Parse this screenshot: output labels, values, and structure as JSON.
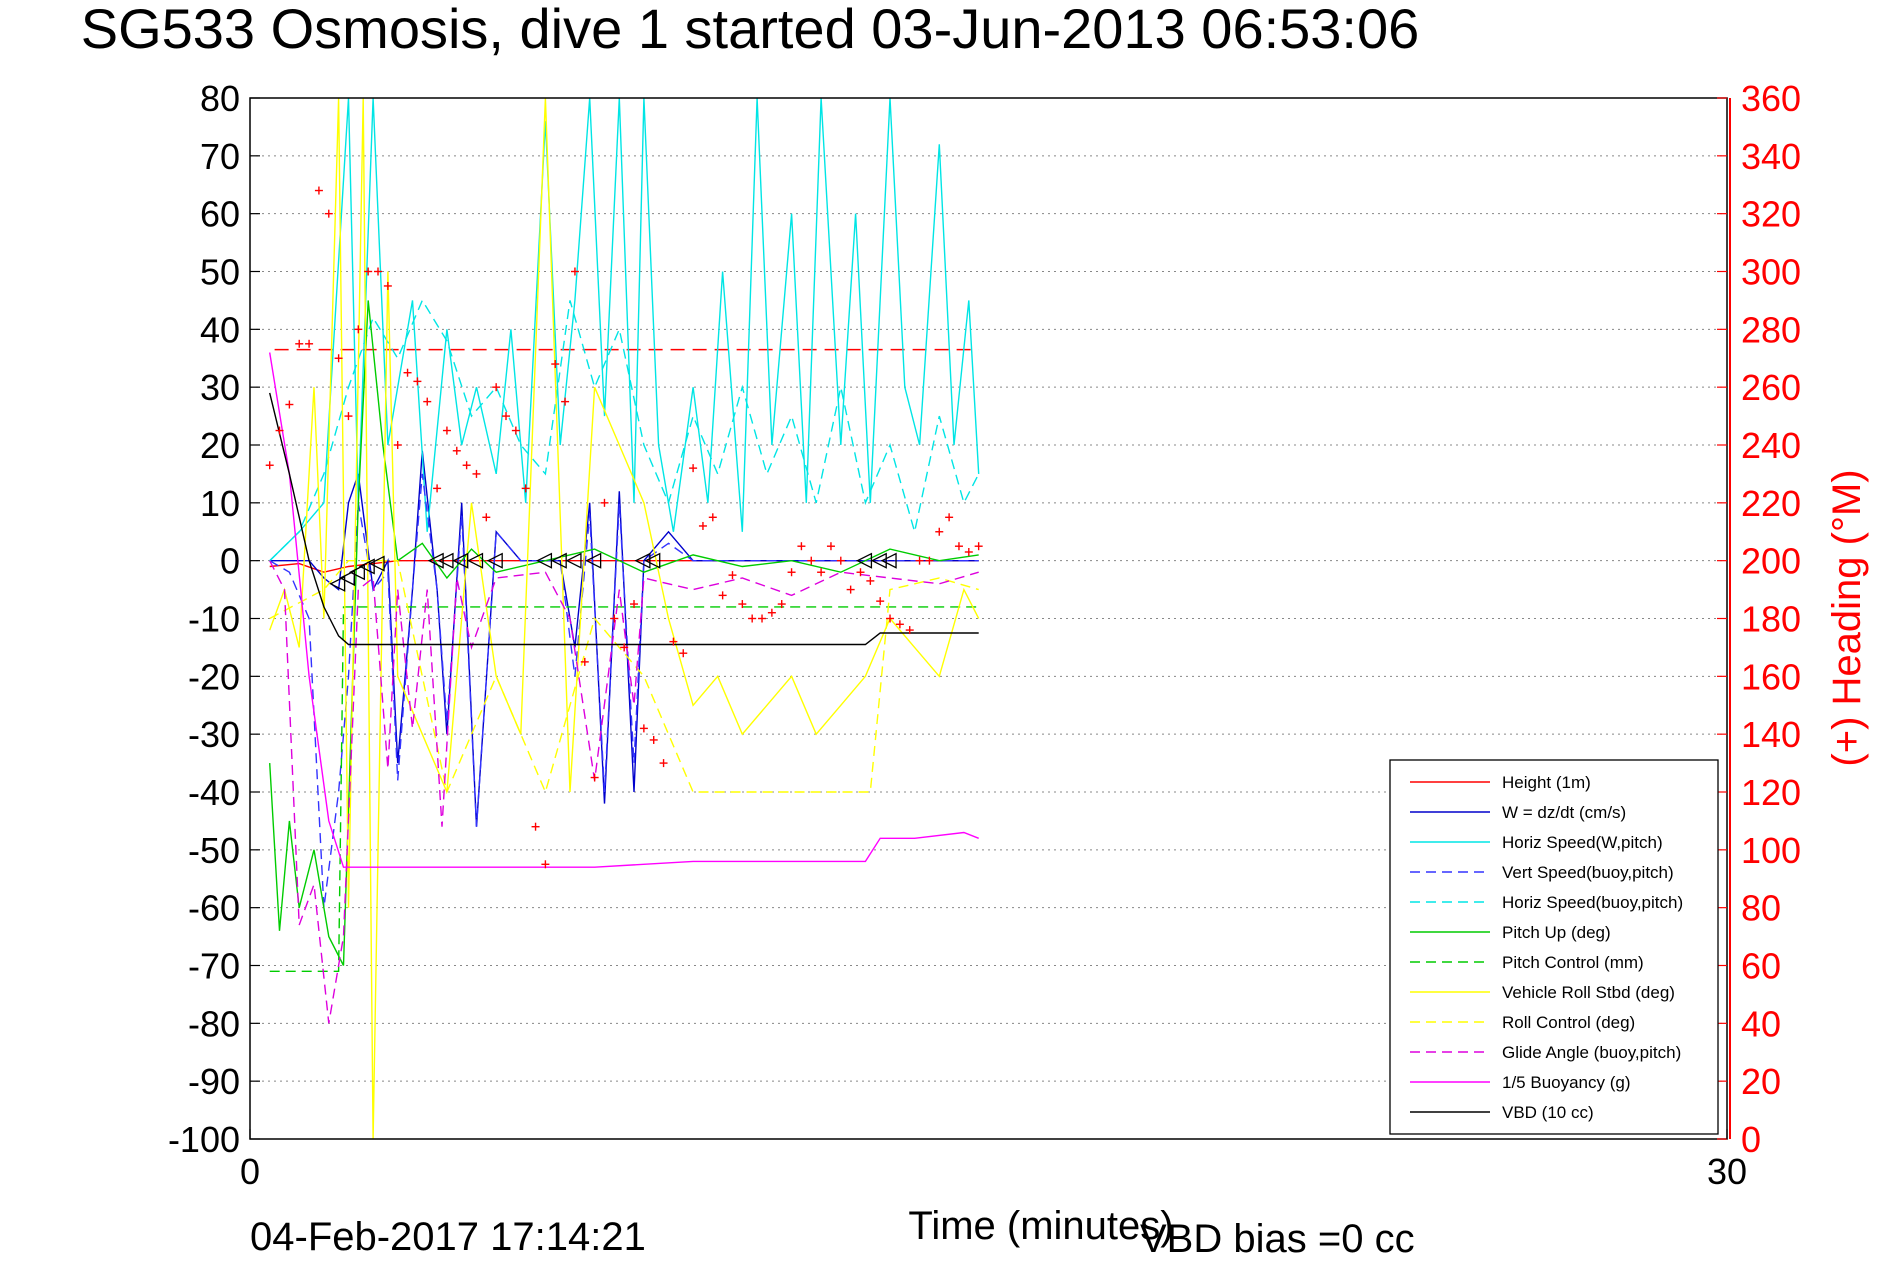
{
  "chart_data": {
    "type": "line",
    "title": "SG533 Osmosis, dive 1 started 03-Jun-2013 06:53:06",
    "xlabel": "Time (minutes)",
    "ylabel_right": "(+) Heading (°M)",
    "xlim": [
      0,
      30
    ],
    "ylim": [
      -100,
      80
    ],
    "ylim_right": [
      0,
      360
    ],
    "x_ticks": [
      0,
      30
    ],
    "y_ticks": [
      80,
      70,
      60,
      50,
      40,
      30,
      20,
      10,
      0,
      -10,
      -20,
      -30,
      -40,
      -50,
      -60,
      -70,
      -80,
      -90,
      -100
    ],
    "y_ticks_right": [
      360,
      340,
      320,
      300,
      280,
      260,
      240,
      220,
      200,
      180,
      160,
      140,
      120,
      100,
      80,
      60,
      40,
      20,
      0
    ],
    "grid": true,
    "legend_position": "bottom-right",
    "footer_timestamp": "04-Feb-2017 17:14:21",
    "footer_note": "VBD bias =0 cc",
    "colors": {
      "right_axis": "#ff0000",
      "height": "#ff0000",
      "w": "#0000cc",
      "horiz_w_pitch": "#00e5e5",
      "vert_buoy": "#3333ff",
      "horiz_buoy": "#00e5e5",
      "pitch_up": "#00cc00",
      "pitch_control": "#00cc00",
      "roll": "#ffff00",
      "roll_control": "#ffff00",
      "glide_angle": "#dd00dd",
      "buoyancy": "#ff00ff",
      "vbd": "#000000"
    },
    "series": [
      {
        "name": "Height (1m)",
        "key": "height",
        "style": "solid",
        "x": [
          0.4,
          1.0,
          1.5,
          2.0,
          3.0,
          6.0,
          9.0,
          12.0,
          14.8
        ],
        "y": [
          -1,
          -0.5,
          -2,
          -1,
          0,
          0,
          0,
          0,
          0
        ]
      },
      {
        "name": "W = dz/dt (cm/s)",
        "key": "w",
        "style": "solid",
        "x": [
          0.4,
          0.8,
          1.2,
          1.5,
          1.8,
          2.0,
          2.2,
          2.5,
          2.8,
          3.0,
          3.3,
          3.5,
          3.8,
          4.0,
          4.3,
          4.6,
          5.0,
          5.5,
          6.0,
          6.3,
          6.6,
          6.9,
          7.2,
          7.5,
          7.8,
          8.0,
          8.5,
          9.0,
          9.5,
          10,
          11,
          12,
          13,
          14,
          14.8
        ],
        "y": [
          0,
          0,
          0,
          -3,
          -5,
          10,
          15,
          -5,
          0,
          -35,
          -5,
          19,
          -5,
          -30,
          10,
          -46,
          5,
          0,
          0,
          0,
          -15,
          10,
          -42,
          12,
          -40,
          0,
          5,
          0,
          0,
          0,
          0,
          0,
          0,
          0,
          0
        ]
      },
      {
        "name": "Horiz Speed(W,pitch)",
        "key": "horiz_w_pitch",
        "style": "solid",
        "x": [
          0.4,
          1.0,
          1.5,
          2.0,
          2.2,
          2.5,
          2.8,
          3.0,
          3.3,
          3.6,
          4.0,
          4.3,
          4.6,
          5.0,
          5.3,
          5.6,
          6.0,
          6.3,
          6.6,
          6.9,
          7.2,
          7.5,
          7.8,
          8.0,
          8.3,
          8.6,
          9.0,
          9.3,
          9.6,
          10.0,
          10.3,
          10.6,
          11.0,
          11.3,
          11.6,
          12.0,
          12.3,
          12.6,
          13.0,
          13.3,
          13.6,
          14.0,
          14.3,
          14.6,
          14.8
        ],
        "y": [
          0,
          5,
          10,
          80,
          10,
          80,
          20,
          30,
          45,
          5,
          40,
          20,
          30,
          15,
          40,
          10,
          76,
          20,
          45,
          80,
          25,
          80,
          10,
          80,
          20,
          5,
          30,
          10,
          50,
          5,
          80,
          20,
          60,
          10,
          80,
          20,
          60,
          10,
          80,
          30,
          20,
          72,
          20,
          45,
          15
        ]
      },
      {
        "name": "Vert Speed(buoy,pitch)",
        "key": "vert_buoy",
        "style": "dashed",
        "x": [
          0.4,
          0.8,
          1.2,
          1.5,
          1.8,
          2.0,
          2.2,
          2.5,
          2.8,
          3.0,
          3.3,
          3.5,
          3.8,
          4.0,
          4.3,
          4.6,
          5.0,
          5.5,
          6.0,
          6.3,
          6.6,
          6.9,
          7.2,
          7.5,
          7.8,
          8.0,
          8.5,
          9.0,
          9.5,
          10,
          11,
          12,
          13,
          14,
          14.8
        ],
        "y": [
          0,
          -2,
          -10,
          -60,
          -40,
          -20,
          10,
          -5,
          -2,
          -38,
          -5,
          15,
          -5,
          -28,
          8,
          -46,
          5,
          0,
          0,
          0,
          -20,
          8,
          -40,
          10,
          -35,
          0,
          3,
          0,
          0,
          0,
          0,
          0,
          0,
          0,
          0
        ]
      },
      {
        "name": "Horiz Speed(buoy,pitch)",
        "key": "horiz_buoy",
        "style": "dashed",
        "x": [
          0.4,
          1.0,
          1.5,
          2.0,
          2.5,
          3.0,
          3.5,
          4.0,
          4.5,
          5.0,
          5.5,
          6.0,
          6.5,
          7.0,
          7.5,
          8.0,
          8.5,
          9.0,
          9.5,
          10.0,
          10.5,
          11.0,
          11.5,
          12.0,
          12.5,
          13.0,
          13.5,
          14.0,
          14.5,
          14.8
        ],
        "y": [
          0,
          5,
          15,
          30,
          42,
          35,
          45,
          38,
          25,
          30,
          20,
          15,
          45,
          30,
          40,
          20,
          10,
          25,
          15,
          30,
          15,
          25,
          10,
          30,
          10,
          20,
          5,
          25,
          10,
          15
        ]
      },
      {
        "name": "Pitch Up (deg)",
        "key": "pitch_up",
        "style": "solid",
        "x": [
          0.4,
          0.6,
          0.8,
          1.0,
          1.3,
          1.6,
          1.9,
          2.2,
          2.4,
          2.7,
          3.0,
          3.5,
          4.0,
          4.5,
          5.0,
          6.0,
          7.0,
          8.0,
          9.0,
          10.0,
          11.0,
          12.0,
          13.0,
          14.0,
          14.8
        ],
        "y": [
          -35,
          -64,
          -45,
          -60,
          -50,
          -65,
          -70,
          10,
          45,
          20,
          0,
          3,
          -3,
          2,
          -2,
          0,
          2,
          -2,
          1,
          -1,
          0,
          -2,
          2,
          0,
          1
        ]
      },
      {
        "name": "Pitch Control (mm)",
        "key": "pitch_control",
        "style": "dashed",
        "x": [
          0.4,
          1.8,
          1.9,
          5.0,
          9.0,
          12.5,
          14.8
        ],
        "y": [
          -71,
          -71,
          -8,
          -8,
          -8,
          -8,
          -8
        ]
      },
      {
        "name": "Vehicle Roll Stbd (deg)",
        "key": "roll",
        "style": "solid",
        "x": [
          0.4,
          0.7,
          1.0,
          1.3,
          1.5,
          1.8,
          2.0,
          2.3,
          2.5,
          2.8,
          3.0,
          3.5,
          4.0,
          4.5,
          5.0,
          5.5,
          6.0,
          6.5,
          7.0,
          7.5,
          8.0,
          8.5,
          9.0,
          9.5,
          10.0,
          10.5,
          11.0,
          11.5,
          12.0,
          12.5,
          13.0,
          13.5,
          14.0,
          14.5,
          14.8
        ],
        "y": [
          -12,
          -5,
          -15,
          30,
          -10,
          80,
          -60,
          80,
          -100,
          50,
          -20,
          -30,
          -40,
          10,
          -20,
          -30,
          80,
          -40,
          30,
          20,
          10,
          -10,
          -25,
          -20,
          -30,
          -25,
          -20,
          -30,
          -25,
          -20,
          -10,
          -15,
          -20,
          -5,
          -10
        ]
      },
      {
        "name": "Roll Control (deg)",
        "key": "roll_control",
        "style": "dashed",
        "x": [
          0.4,
          1.5,
          2.0,
          3.0,
          4.0,
          5.0,
          6.0,
          7.0,
          8.0,
          8.5,
          9.0,
          10.0,
          11.0,
          12.0,
          12.6,
          13.0,
          14.0,
          14.8
        ],
        "y": [
          -10,
          -5,
          0,
          0,
          -40,
          -20,
          -40,
          -10,
          -20,
          -30,
          -40,
          -40,
          -40,
          -40,
          -40,
          -5,
          -3,
          -5
        ]
      },
      {
        "name": "Glide Angle (buoy,pitch)",
        "key": "glide_angle",
        "style": "dashed",
        "x": [
          0.4,
          0.7,
          1.0,
          1.3,
          1.6,
          1.9,
          2.2,
          2.5,
          2.8,
          3.0,
          3.3,
          3.6,
          3.9,
          4.2,
          4.5,
          5.0,
          6.0,
          6.5,
          7.0,
          7.5,
          7.8,
          8.0,
          9.0,
          10.0,
          11.0,
          12.0,
          13.0,
          14.0,
          14.8
        ],
        "y": [
          0,
          -5,
          -63,
          -56,
          -80,
          -65,
          -5,
          -3,
          -36,
          -5,
          -29,
          -5,
          -46,
          -3,
          -15,
          -3,
          -2,
          -10,
          -38,
          -5,
          -25,
          -3,
          -5,
          -3,
          -6,
          -2,
          -3,
          -4,
          -2
        ]
      },
      {
        "name": "1/5 Buoyancy (g)",
        "key": "buoyancy",
        "style": "solid",
        "x": [
          0.4,
          0.8,
          1.2,
          1.6,
          1.9,
          2.2,
          3.0,
          5.0,
          7.0,
          9.0,
          11.0,
          12.5,
          12.8,
          13.5,
          14.5,
          14.8
        ],
        "y": [
          36,
          15,
          -20,
          -45,
          -53,
          -53,
          -53,
          -53,
          -53,
          -52,
          -52,
          -52,
          -48,
          -48,
          -47,
          -48
        ]
      },
      {
        "name": "VBD (10 cc)",
        "key": "vbd",
        "style": "solid",
        "x": [
          0.4,
          0.8,
          1.2,
          1.5,
          1.8,
          2.0,
          3.0,
          5.0,
          7.0,
          9.0,
          11.0,
          12.5,
          12.8,
          14.8
        ],
        "y": [
          29,
          15,
          0,
          -8,
          -13,
          -14.5,
          -14.5,
          -14.5,
          -14.5,
          -14.5,
          -14.5,
          -14.5,
          -12.5,
          -12.5
        ]
      }
    ],
    "reference_lines": [
      {
        "key": "height",
        "style": "dashed",
        "x": [
          0.5,
          14.8
        ],
        "y_right": 273
      }
    ],
    "heading_points": {
      "x": [
        0.4,
        0.6,
        0.8,
        1.0,
        1.2,
        1.4,
        1.6,
        1.8,
        2.0,
        2.2,
        2.4,
        2.6,
        2.8,
        3.0,
        3.2,
        3.4,
        3.6,
        3.8,
        4.0,
        4.2,
        4.4,
        4.6,
        4.8,
        5.0,
        5.2,
        5.4,
        5.6,
        5.8,
        6.0,
        6.2,
        6.4,
        6.6,
        6.8,
        7.0,
        7.2,
        7.4,
        7.6,
        7.8,
        8.0,
        8.2,
        8.4,
        8.6,
        8.8,
        9.0,
        9.2,
        9.4,
        9.6,
        9.8,
        10.0,
        10.2,
        10.4,
        10.6,
        10.8,
        11.0,
        11.2,
        11.4,
        11.6,
        11.8,
        12.0,
        12.2,
        12.4,
        12.6,
        12.8,
        13.0,
        13.2,
        13.4,
        13.6,
        13.8,
        14.0,
        14.2,
        14.4,
        14.6,
        14.8
      ],
      "y": [
        233,
        245,
        254,
        275,
        275,
        328,
        320,
        270,
        250,
        280,
        300,
        300,
        295,
        240,
        265,
        262,
        255,
        225,
        245,
        238,
        233,
        230,
        215,
        260,
        250,
        245,
        225,
        108,
        95,
        268,
        255,
        300,
        165,
        125,
        220,
        180,
        170,
        185,
        142,
        138,
        130,
        172,
        168,
        232,
        212,
        215,
        188,
        195,
        185,
        180,
        180,
        182,
        185,
        196,
        205,
        200,
        196,
        205,
        200,
        190,
        196,
        193,
        186,
        180,
        178,
        176,
        200,
        200,
        210,
        215,
        205,
        203,
        205
      ]
    },
    "markers": {
      "type": "triangle",
      "points": [
        [
          1.8,
          -4
        ],
        [
          2.0,
          -3
        ],
        [
          2.2,
          -2
        ],
        [
          2.4,
          -1
        ],
        [
          2.6,
          -0.5
        ],
        [
          3.8,
          0
        ],
        [
          4.0,
          0
        ],
        [
          4.3,
          0
        ],
        [
          4.6,
          0
        ],
        [
          5.0,
          0
        ],
        [
          6.0,
          0
        ],
        [
          6.3,
          0
        ],
        [
          6.6,
          0
        ],
        [
          7.0,
          0
        ],
        [
          8.0,
          0
        ],
        [
          8.2,
          0
        ],
        [
          12.5,
          0
        ],
        [
          12.8,
          0
        ],
        [
          13.0,
          0
        ]
      ]
    },
    "legend": [
      {
        "label": "Height (1m)",
        "key": "height",
        "style": "solid"
      },
      {
        "label": "W = dz/dt (cm/s)",
        "key": "w",
        "style": "solid"
      },
      {
        "label": "Horiz Speed(W,pitch)",
        "key": "horiz_w_pitch",
        "style": "solid"
      },
      {
        "label": "Vert Speed(buoy,pitch)",
        "key": "vert_buoy",
        "style": "dashed"
      },
      {
        "label": "Horiz Speed(buoy,pitch)",
        "key": "horiz_buoy",
        "style": "dashed"
      },
      {
        "label": "Pitch Up (deg)",
        "key": "pitch_up",
        "style": "solid"
      },
      {
        "label": "Pitch Control (mm)",
        "key": "pitch_control",
        "style": "dashed"
      },
      {
        "label": "Vehicle Roll Stbd (deg)",
        "key": "roll",
        "style": "solid"
      },
      {
        "label": "Roll Control (deg)",
        "key": "roll_control",
        "style": "dashed"
      },
      {
        "label": "Glide Angle (buoy,pitch)",
        "key": "glide_angle",
        "style": "dashed"
      },
      {
        "label": "1/5 Buoyancy (g)",
        "key": "buoyancy",
        "style": "solid"
      },
      {
        "label": "VBD (10 cc)",
        "key": "vbd",
        "style": "solid"
      }
    ]
  }
}
